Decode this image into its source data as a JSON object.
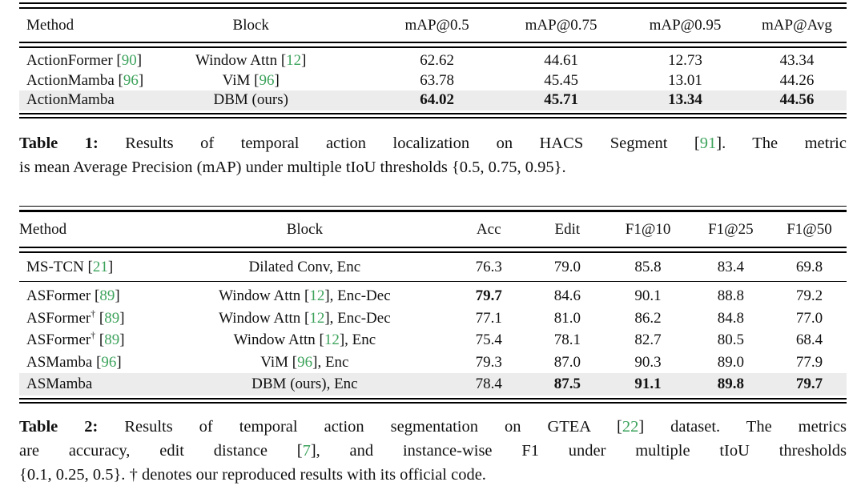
{
  "colors": {
    "citation_green": "#3da35c",
    "highlight_row": "#ececec",
    "rule": "#000000",
    "text": "#111111",
    "background": "#ffffff"
  },
  "tables": [
    {
      "name": "Table 1",
      "columns": [
        {
          "label": "Method",
          "align": "left"
        },
        {
          "label": "Block",
          "align": "center"
        },
        {
          "label": "mAP@0.5",
          "align": "center"
        },
        {
          "label": "mAP@0.75",
          "align": "center"
        },
        {
          "label": "mAP@0.95",
          "align": "center"
        },
        {
          "label": "mAP@Avg",
          "align": "center"
        }
      ],
      "rows": [
        {
          "cells": [
            "ActionFormer [90]",
            "Window Attn [12]",
            "62.62",
            "44.61",
            "12.73",
            "43.34"
          ],
          "bold": [
            false,
            false,
            false,
            false,
            false,
            false
          ],
          "highlight": false,
          "rule_after": false
        },
        {
          "cells": [
            "ActionMamba [96]",
            "ViM [96]",
            "63.78",
            "45.45",
            "13.01",
            "44.26"
          ],
          "bold": [
            false,
            false,
            false,
            false,
            false,
            false
          ],
          "highlight": false,
          "rule_after": false
        },
        {
          "cells": [
            "ActionMamba",
            "DBM (ours)",
            "64.02",
            "45.71",
            "13.34",
            "44.56"
          ],
          "bold": [
            false,
            false,
            true,
            true,
            true,
            true
          ],
          "highlight": true,
          "rule_after": false
        }
      ],
      "caption": {
        "label": "Table 1:",
        "lines": [
          "Results of temporal action localization on HACS Segment [91]. The metric",
          "is mean Average Precision (mAP) under multiple tIoU thresholds {0.5, 0.75, 0.95}."
        ]
      }
    },
    {
      "name": "Table 2",
      "columns": [
        {
          "label": "Method",
          "align": "left"
        },
        {
          "label": "Block",
          "align": "center"
        },
        {
          "label": "Acc",
          "align": "center"
        },
        {
          "label": "Edit",
          "align": "center"
        },
        {
          "label": "F1@10",
          "align": "center"
        },
        {
          "label": "F1@25",
          "align": "center"
        },
        {
          "label": "F1@50",
          "align": "center"
        }
      ],
      "rows": [
        {
          "cells": [
            "MS-TCN [21]",
            "Dilated Conv, Enc",
            "76.3",
            "79.0",
            "85.8",
            "83.4",
            "69.8"
          ],
          "bold": [
            false,
            false,
            false,
            false,
            false,
            false,
            false
          ],
          "highlight": false,
          "rule_after": true
        },
        {
          "cells": [
            "ASFormer [89]",
            "Window Attn [12], Enc-Dec",
            "79.7",
            "84.6",
            "90.1",
            "88.8",
            "79.2"
          ],
          "bold": [
            false,
            false,
            true,
            false,
            false,
            false,
            false
          ],
          "highlight": false,
          "rule_after": false
        },
        {
          "cells": [
            "ASFormer† [89]",
            "Window Attn [12], Enc-Dec",
            "77.1",
            "81.0",
            "86.2",
            "84.8",
            "77.0"
          ],
          "bold": [
            false,
            false,
            false,
            false,
            false,
            false,
            false
          ],
          "highlight": false,
          "rule_after": false
        },
        {
          "cells": [
            "ASFormer† [89]",
            "Window Attn [12], Enc",
            "75.4",
            "78.1",
            "82.7",
            "80.5",
            "68.4"
          ],
          "bold": [
            false,
            false,
            false,
            false,
            false,
            false,
            false
          ],
          "highlight": false,
          "rule_after": false
        },
        {
          "cells": [
            "ASMamba [96]",
            "ViM [96], Enc",
            "79.3",
            "87.0",
            "90.3",
            "89.0",
            "77.9"
          ],
          "bold": [
            false,
            false,
            false,
            false,
            false,
            false,
            false
          ],
          "highlight": false,
          "rule_after": false
        },
        {
          "cells": [
            "ASMamba",
            "DBM (ours), Enc",
            "78.4",
            "87.5",
            "91.1",
            "89.8",
            "79.7"
          ],
          "bold": [
            false,
            false,
            false,
            true,
            true,
            true,
            true
          ],
          "highlight": true,
          "rule_after": false
        }
      ],
      "caption": {
        "label": "Table 2:",
        "lines": [
          "Results of temporal action segmentation on GTEA [22] dataset. The metrics",
          "are accuracy, edit distance [7], and instance-wise F1 under multiple tIoU thresholds",
          "{0.1, 0.25, 0.5}. † denotes our reproduced results with its official code."
        ]
      }
    }
  ]
}
